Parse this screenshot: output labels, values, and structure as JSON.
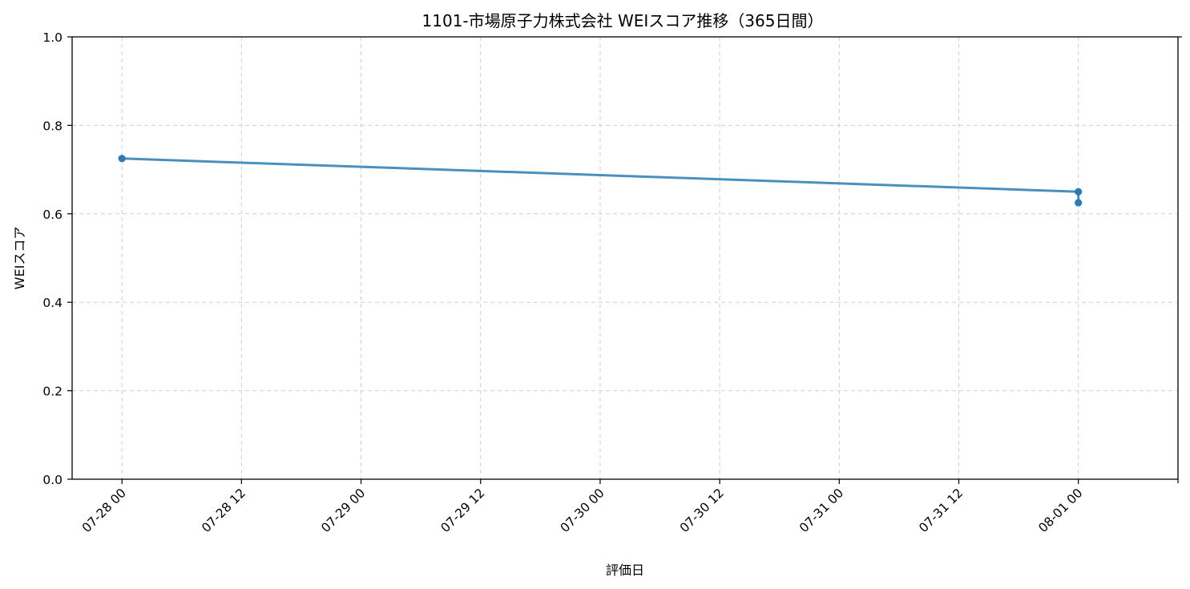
{
  "chart_data": {
    "type": "line",
    "title": "1101-市場原子力株式会社 WEIスコア推移（365日間）",
    "xlabel": "評価日",
    "ylabel": "WEIスコア",
    "ylim": [
      0,
      1
    ],
    "xlim": [
      "2025-07-27T19:00",
      "2025-08-01T10:00"
    ],
    "yticks": [
      "0.0",
      "0.2",
      "0.4",
      "0.6",
      "0.8",
      "1.0"
    ],
    "xticks": [
      {
        "t": "2025-07-28T00:00",
        "label": "07-28 00"
      },
      {
        "t": "2025-07-28T12:00",
        "label": "07-28 12"
      },
      {
        "t": "2025-07-29T00:00",
        "label": "07-29 00"
      },
      {
        "t": "2025-07-29T12:00",
        "label": "07-29 12"
      },
      {
        "t": "2025-07-30T00:00",
        "label": "07-30 00"
      },
      {
        "t": "2025-07-30T12:00",
        "label": "07-30 12"
      },
      {
        "t": "2025-07-31T00:00",
        "label": "07-31 00"
      },
      {
        "t": "2025-07-31T12:00",
        "label": "07-31 12"
      },
      {
        "t": "2025-08-01T00:00",
        "label": "08-01 00"
      }
    ],
    "grid": true,
    "series": [
      {
        "color": "#2b7bb4",
        "points": [
          {
            "x": "2025-07-28T00:00",
            "y": 0.725
          },
          {
            "x": "2025-08-01T00:00",
            "y": 0.65
          },
          {
            "x": "2025-08-01T00:00",
            "y": 0.625
          }
        ]
      }
    ]
  }
}
